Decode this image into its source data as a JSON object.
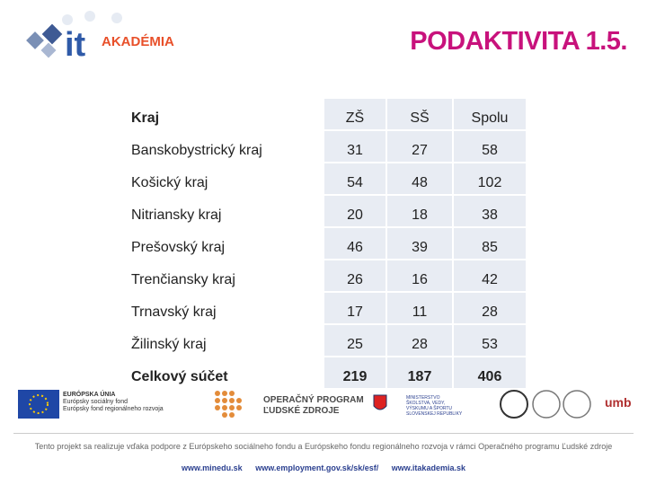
{
  "header": {
    "logo_it": "it",
    "logo_text": "AKADÉMIA",
    "title": "PODAKTIVITA 1.5."
  },
  "table": {
    "columns": [
      "Kraj",
      "ZŠ",
      "SŠ",
      "Spolu"
    ],
    "rows": [
      [
        "Banskobystrický kraj",
        31,
        27,
        58
      ],
      [
        "Košický kraj",
        54,
        48,
        102
      ],
      [
        "Nitriansky kraj",
        20,
        18,
        38
      ],
      [
        "Prešovský kraj",
        46,
        39,
        85
      ],
      [
        "Trenčiansky kraj",
        26,
        16,
        42
      ],
      [
        "Trnavský kraj",
        17,
        11,
        28
      ],
      [
        "Žilinský kraj",
        25,
        28,
        53
      ],
      [
        "Celkový súčet",
        219,
        187,
        406
      ]
    ]
  },
  "footer": {
    "eu": [
      "EURÓPSKA ÚNIA",
      "Európsky sociálny fond",
      "Európsky fond regionálneho rozvoja"
    ],
    "op": [
      "OPERAČNÝ PROGRAM",
      "ĽUDSKÉ ZDROJE"
    ],
    "ministry": [
      "MINISTERSTVO",
      "ŠKOLSTVA, VEDY,",
      "VÝSKUMU A ŠPORTU",
      "SLOVENSKEJ REPUBLIKY"
    ],
    "umb": "umb",
    "note": "Tento projekt sa realizuje vďaka podpore z Európskeho sociálneho fondu a Európskeho fondu regionálneho rozvoja v rámci Operačného programu Ľudské zdroje",
    "links": [
      "www.minedu.sk",
      "www.employment.gov.sk/sk/esf/",
      "www.itakademia.sk"
    ]
  }
}
